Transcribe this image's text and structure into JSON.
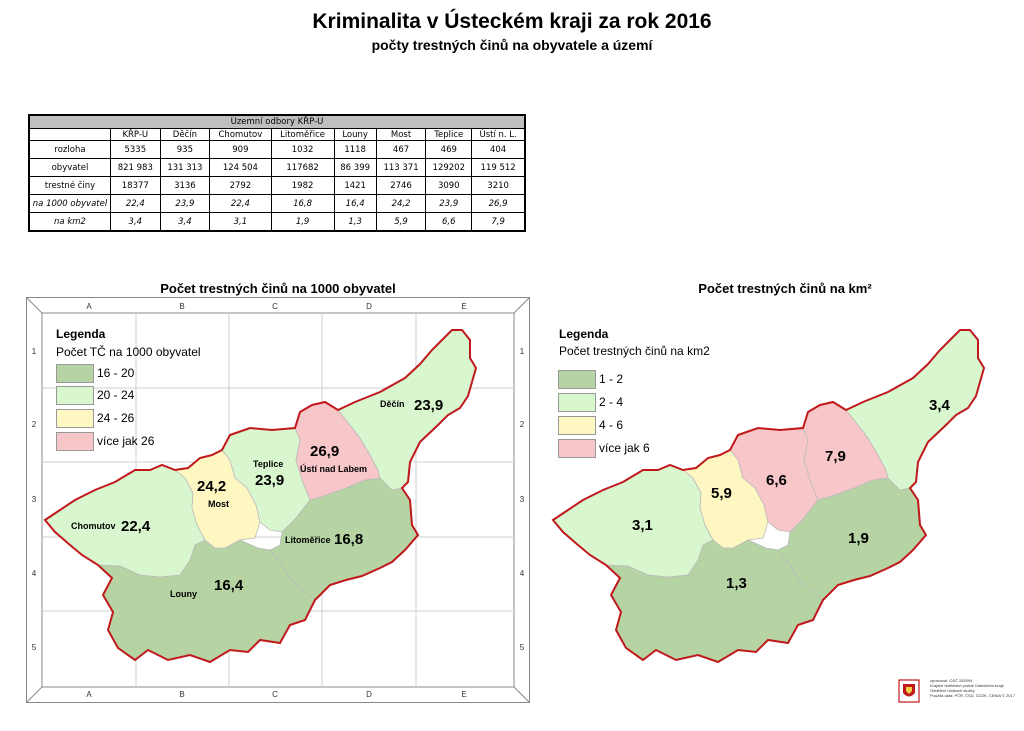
{
  "title": "Kriminalita v Ústeckém kraji za rok 2016",
  "subtitle": "počty trestných činů na obyvatele a území",
  "table": {
    "group_header": "Územní odbory KŘP-U",
    "columns": [
      "KŘP-U",
      "Děčín",
      "Chomutov",
      "Litoměřice",
      "Louny",
      "Most",
      "Teplice",
      "Ústí n. L."
    ],
    "rows": [
      {
        "label": "rozloha",
        "values": [
          "5335",
          "935",
          "909",
          "1032",
          "1118",
          "467",
          "469",
          "404"
        ]
      },
      {
        "label": "obyvatel",
        "values": [
          "821 983",
          "131 313",
          "124 504",
          "117682",
          "86 399",
          "113 371",
          "129202",
          "119 512"
        ]
      },
      {
        "label": "trestné činy",
        "values": [
          "18377",
          "3136",
          "2792",
          "1982",
          "1421",
          "2746",
          "3090",
          "3210"
        ]
      },
      {
        "label": "na 1000 obyvatel",
        "values": [
          "22,4",
          "23,9",
          "22,4",
          "16,8",
          "16,4",
          "24,2",
          "23,9",
          "26,9"
        ]
      },
      {
        "label": "na km2",
        "values": [
          "3,4",
          "3,4",
          "3,1",
          "1,9",
          "1,3",
          "5,9",
          "6,6",
          "7,9"
        ]
      }
    ]
  },
  "map1": {
    "title": "Počet trestných činů na 1000 obyvatel",
    "legend_title": "Legenda",
    "legend_subtitle": "Počet TČ na 1000 obyvatel",
    "legend": [
      {
        "label": "16 - 20",
        "color": "#b5d3a3"
      },
      {
        "label": "20 - 24",
        "color": "#d9f7cf"
      },
      {
        "label": "24 - 26",
        "color": "#fff7c2"
      },
      {
        "label": "více jak 26",
        "color": "#f7c6c9"
      }
    ],
    "grid_cols": [
      "A",
      "B",
      "C",
      "D",
      "E"
    ],
    "grid_rows": [
      "1",
      "2",
      "3",
      "4",
      "5"
    ],
    "districts": {
      "decin": {
        "name": "Děčín",
        "value": "23,9",
        "color": "#d9f7cf"
      },
      "usti": {
        "name": "Ústí nad Labem",
        "value": "26,9",
        "color": "#f7c6c9"
      },
      "teplice": {
        "name": "Teplice",
        "value": "23,9",
        "color": "#d9f7cf"
      },
      "most": {
        "name": "Most",
        "value": "24,2",
        "color": "#fff7c2"
      },
      "chomutov": {
        "name": "Chomutov",
        "value": "22,4",
        "color": "#d9f7cf"
      },
      "litomerice": {
        "name": "Litoměřice",
        "value": "16,8",
        "color": "#b5d3a3"
      },
      "louny": {
        "name": "Louny",
        "value": "16,4",
        "color": "#b5d3a3"
      }
    }
  },
  "map2": {
    "title": "Počet trestných činů na km²",
    "legend_title": "Legenda",
    "legend_subtitle": "Počet trestných činů na km2",
    "legend": [
      {
        "label": "1 - 2",
        "color": "#b5d3a3"
      },
      {
        "label": "2 - 4",
        "color": "#d9f7cf"
      },
      {
        "label": "4 - 6",
        "color": "#fff7c2"
      },
      {
        "label": "více jak 6",
        "color": "#f7c6c9"
      }
    ],
    "districts": {
      "decin": {
        "value": "3,4",
        "color": "#d9f7cf"
      },
      "usti": {
        "value": "7,9",
        "color": "#f7c6c9"
      },
      "teplice": {
        "value": "6,6",
        "color": "#f7c6c9"
      },
      "most": {
        "value": "5,9",
        "color": "#fff7c2"
      },
      "chomutov": {
        "value": "3,1",
        "color": "#d9f7cf"
      },
      "litomerice": {
        "value": "1,9",
        "color": "#b5d3a3"
      },
      "louny": {
        "value": "1,3",
        "color": "#b5d3a3"
      }
    }
  },
  "footer": {
    "line1": "zpracoval: OSČ 282094",
    "line2": "Krajské ředitelství policie Ústeckého kraje",
    "line3": "Oddělení hlídkové služby",
    "line4": "Použitá data: PČR, ČSÚ, ČÚZK, CENIA © 2017"
  },
  "colors": {
    "border": "#c0181b",
    "grid": "#999999"
  }
}
